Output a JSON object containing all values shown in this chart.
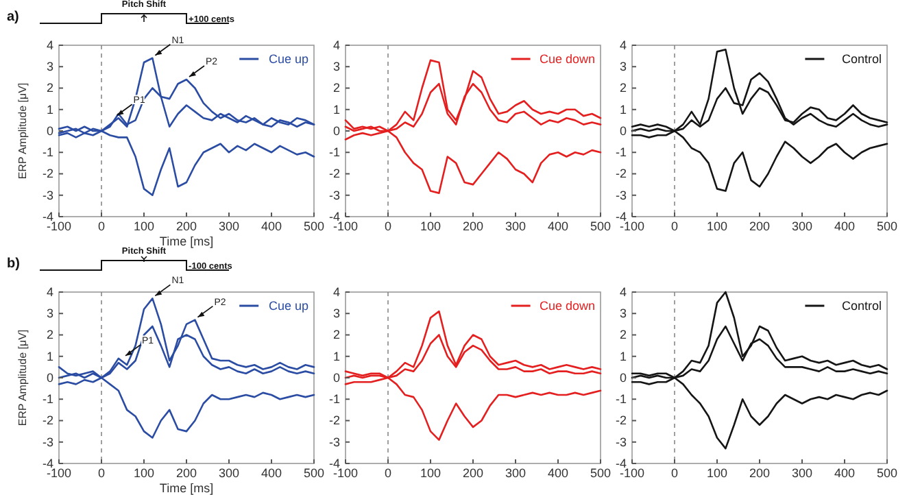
{
  "chart_data": [
    {
      "type": "line",
      "xlabel": "Time [ms]",
      "ylabel": "ERP Amplitude [μV]",
      "x": [
        -100,
        -80,
        -60,
        -40,
        -20,
        0,
        20,
        40,
        60,
        80,
        100,
        120,
        140,
        160,
        180,
        200,
        220,
        240,
        260,
        280,
        300,
        320,
        340,
        360,
        380,
        400,
        420,
        440,
        460,
        480,
        500
      ],
      "xlim": [
        -100,
        500
      ],
      "ylim": [
        -4,
        4
      ],
      "xticks": [
        -100,
        0,
        100,
        200,
        300,
        400,
        500
      ],
      "yticks": [
        -4,
        -3,
        -2,
        -1,
        0,
        1,
        2,
        3,
        4
      ],
      "legend": "top right",
      "ref_lines": [
        {
          "axis": "x",
          "value": 0,
          "line_style": "dashed"
        }
      ],
      "annotations": [
        "a)",
        "Pitch Shift",
        "+100 cents",
        {
          "text": "P1",
          "x": 30,
          "y": 0.6
        },
        {
          "text": "N1",
          "x": 120,
          "y": 3.4
        },
        {
          "text": "P2",
          "x": 200,
          "y": 2.4
        }
      ],
      "series": [
        {
          "name": "Cue up",
          "color": "#2b4ca3",
          "values": [
            0.1,
            0.2,
            0,
            0.2,
            0,
            0,
            0.3,
            0.6,
            0.2,
            1.5,
            3.2,
            3.4,
            1.6,
            0.2,
            0.8,
            1.2,
            0.9,
            0.6,
            0.5,
            0.8,
            0.6,
            0.4,
            0.7,
            0.5,
            0.3,
            0.6,
            0.4,
            0.3,
            0.6,
            0.5,
            0.3
          ]
        },
        {
          "color": "#2b4ca3",
          "values": [
            -0.1,
            0,
            0.1,
            -0.1,
            0.1,
            0,
            0.2,
            0.8,
            0.3,
            0.5,
            1.5,
            2.0,
            1.6,
            1.5,
            2.2,
            2.4,
            2.0,
            1.3,
            0.9,
            0.6,
            0.8,
            0.5,
            0.4,
            0.6,
            0.3,
            0.2,
            0.5,
            0.4,
            0.2,
            0.4,
            0.3
          ]
        },
        {
          "color": "#2b4ca3",
          "values": [
            -0.2,
            -0.1,
            -0.3,
            -0.1,
            -0.2,
            0,
            -0.2,
            -0.3,
            -0.3,
            -1.2,
            -2.7,
            -3.0,
            -1.8,
            -0.8,
            -2.6,
            -2.4,
            -1.6,
            -1.0,
            -0.8,
            -0.6,
            -1.0,
            -0.7,
            -0.9,
            -0.6,
            -0.8,
            -1.0,
            -0.7,
            -0.9,
            -1.1,
            -1.0,
            -1.2
          ]
        }
      ]
    },
    {
      "type": "line",
      "x": [
        -100,
        -80,
        -60,
        -40,
        -20,
        0,
        20,
        40,
        60,
        80,
        100,
        120,
        140,
        160,
        180,
        200,
        220,
        240,
        260,
        280,
        300,
        320,
        340,
        360,
        380,
        400,
        420,
        440,
        460,
        480,
        500
      ],
      "xlim": [
        -100,
        500
      ],
      "ylim": [
        -4,
        4
      ],
      "xticks": [
        -100,
        0,
        100,
        200,
        300,
        400,
        500
      ],
      "yticks": [
        -4,
        -3,
        -2,
        -1,
        0,
        1,
        2,
        3,
        4
      ],
      "legend": "top right",
      "ref_lines": [
        {
          "axis": "x",
          "value": 0,
          "line_style": "dashed"
        }
      ],
      "series": [
        {
          "name": "Cue down",
          "color": "#e41f1f",
          "values": [
            0.5,
            0.1,
            0.2,
            0.1,
            0.2,
            0,
            0.3,
            0.9,
            0.5,
            2.0,
            3.3,
            3.2,
            1.0,
            0.5,
            1.5,
            2.8,
            2.5,
            1.5,
            0.8,
            0.9,
            1.2,
            1.4,
            1.0,
            0.8,
            0.9,
            0.8,
            1.0,
            1.0,
            0.7,
            0.8,
            0.6
          ]
        },
        {
          "color": "#e41f1f",
          "values": [
            0.2,
            0,
            0.1,
            0.2,
            0,
            0,
            0.1,
            0.4,
            0.2,
            0.8,
            1.8,
            2.2,
            0.8,
            0.3,
            1.6,
            2.2,
            1.8,
            1.0,
            0.5,
            0.4,
            0.8,
            0.9,
            0.6,
            0.3,
            0.5,
            0.4,
            0.6,
            0.5,
            0.3,
            0.4,
            0.3
          ]
        },
        {
          "color": "#e41f1f",
          "values": [
            -0.4,
            -0.2,
            -0.1,
            -0.2,
            -0.1,
            0,
            -0.3,
            -1.0,
            -1.5,
            -1.8,
            -2.8,
            -2.9,
            -1.2,
            -1.5,
            -2.4,
            -2.5,
            -2.0,
            -1.5,
            -1.0,
            -1.3,
            -1.8,
            -2.0,
            -2.4,
            -1.5,
            -1.1,
            -1.0,
            -1.2,
            -1.0,
            -1.1,
            -0.9,
            -1.0
          ]
        }
      ]
    },
    {
      "type": "line",
      "x": [
        -100,
        -80,
        -60,
        -40,
        -20,
        0,
        20,
        40,
        60,
        80,
        100,
        120,
        140,
        160,
        180,
        200,
        220,
        240,
        260,
        280,
        300,
        320,
        340,
        360,
        380,
        400,
        420,
        440,
        460,
        480,
        500
      ],
      "xlim": [
        -100,
        500
      ],
      "ylim": [
        -4,
        4
      ],
      "xticks": [
        -100,
        0,
        100,
        200,
        300,
        400,
        500
      ],
      "yticks": [
        -4,
        -3,
        -2,
        -1,
        0,
        1,
        2,
        3,
        4
      ],
      "legend": "top right",
      "ref_lines": [
        {
          "axis": "x",
          "value": 0,
          "line_style": "dashed"
        }
      ],
      "series": [
        {
          "name": "Control",
          "color": "#151515",
          "values": [
            0.2,
            0.3,
            0.2,
            0.3,
            0.2,
            0,
            0.3,
            0.9,
            0.3,
            1.5,
            3.7,
            3.8,
            2.0,
            0.8,
            1.5,
            2.0,
            1.8,
            1.2,
            0.5,
            0.4,
            0.8,
            1.1,
            1.0,
            0.6,
            0.5,
            0.8,
            1.2,
            0.8,
            0.6,
            0.5,
            0.4
          ]
        },
        {
          "color": "#151515",
          "values": [
            0,
            0.1,
            0,
            0.1,
            0,
            0,
            0.1,
            0.5,
            0.2,
            0.5,
            1.5,
            2.0,
            1.3,
            1.2,
            2.4,
            2.7,
            2.3,
            1.5,
            0.6,
            0.3,
            0.6,
            0.8,
            0.5,
            0.3,
            0.2,
            0.5,
            0.8,
            0.5,
            0.3,
            0.2,
            0.3
          ]
        },
        {
          "color": "#151515",
          "values": [
            -0.2,
            -0.2,
            -0.3,
            -0.2,
            -0.2,
            0,
            -0.3,
            -0.8,
            -1.0,
            -1.5,
            -2.7,
            -2.8,
            -1.5,
            -1.0,
            -2.3,
            -2.6,
            -2.0,
            -1.2,
            -0.5,
            -0.8,
            -1.2,
            -1.5,
            -1.2,
            -0.8,
            -0.6,
            -1.0,
            -1.3,
            -1.0,
            -0.8,
            -0.7,
            -0.6
          ]
        }
      ]
    },
    {
      "type": "line",
      "xlabel": "Time [ms]",
      "ylabel": "ERP Amplitude [μV]",
      "x": [
        -100,
        -80,
        -60,
        -40,
        -20,
        0,
        20,
        40,
        60,
        80,
        100,
        120,
        140,
        160,
        180,
        200,
        220,
        240,
        260,
        280,
        300,
        320,
        340,
        360,
        380,
        400,
        420,
        440,
        460,
        480,
        500
      ],
      "xlim": [
        -100,
        500
      ],
      "ylim": [
        -4,
        4
      ],
      "xticks": [
        -100,
        0,
        100,
        200,
        300,
        400,
        500
      ],
      "yticks": [
        -4,
        -3,
        -2,
        -1,
        0,
        1,
        2,
        3,
        4
      ],
      "legend": "top right",
      "ref_lines": [
        {
          "axis": "x",
          "value": 0,
          "line_style": "dashed"
        }
      ],
      "annotations": [
        "b)",
        "Pitch Shift",
        "-100 cents",
        {
          "text": "P1",
          "x": 50,
          "y": 0.9
        },
        {
          "text": "N1",
          "x": 120,
          "y": 3.7
        },
        {
          "text": "P2",
          "x": 220,
          "y": 2.7
        }
      ],
      "series": [
        {
          "name": "Cue up",
          "color": "#2b4ca3",
          "values": [
            0.5,
            0.2,
            0.1,
            0.2,
            0.3,
            0,
            0.3,
            0.9,
            0.6,
            1.5,
            3.2,
            3.7,
            2.5,
            0.8,
            1.5,
            2.5,
            2.7,
            1.8,
            0.9,
            0.8,
            0.8,
            0.6,
            0.5,
            0.6,
            0.4,
            0.5,
            0.7,
            0.5,
            0.4,
            0.6,
            0.5
          ]
        },
        {
          "color": "#2b4ca3",
          "values": [
            0,
            0.1,
            0.2,
            0,
            0.2,
            0,
            0.2,
            0.7,
            0.4,
            0.8,
            2.0,
            2.4,
            1.5,
            0.5,
            1.8,
            2.0,
            1.8,
            1.0,
            0.6,
            0.4,
            0.5,
            0.3,
            0.2,
            0.4,
            0.2,
            0.3,
            0.5,
            0.3,
            0.2,
            0.3,
            0.2
          ]
        },
        {
          "color": "#2b4ca3",
          "values": [
            -0.3,
            -0.2,
            -0.3,
            -0.1,
            -0.2,
            0,
            -0.3,
            -0.6,
            -1.5,
            -1.8,
            -2.5,
            -2.8,
            -2.0,
            -1.5,
            -2.4,
            -2.5,
            -2.0,
            -1.2,
            -0.8,
            -1.0,
            -1.0,
            -0.9,
            -0.8,
            -0.9,
            -0.7,
            -0.8,
            -1.0,
            -0.9,
            -0.8,
            -0.9,
            -0.8
          ]
        }
      ]
    },
    {
      "type": "line",
      "x": [
        -100,
        -80,
        -60,
        -40,
        -20,
        0,
        20,
        40,
        60,
        80,
        100,
        120,
        140,
        160,
        180,
        200,
        220,
        240,
        260,
        280,
        300,
        320,
        340,
        360,
        380,
        400,
        420,
        440,
        460,
        480,
        500
      ],
      "xlim": [
        -100,
        500
      ],
      "ylim": [
        -4,
        4
      ],
      "xticks": [
        -100,
        0,
        100,
        200,
        300,
        400,
        500
      ],
      "yticks": [
        -4,
        -3,
        -2,
        -1,
        0,
        1,
        2,
        3,
        4
      ],
      "legend": "top right",
      "ref_lines": [
        {
          "axis": "x",
          "value": 0,
          "line_style": "dashed"
        }
      ],
      "series": [
        {
          "name": "Cue down",
          "color": "#e41f1f",
          "values": [
            0.3,
            0.2,
            0.1,
            0.2,
            0.2,
            0,
            0.3,
            0.7,
            0.5,
            1.5,
            2.8,
            3.1,
            1.5,
            0.6,
            1.5,
            2.0,
            1.8,
            1.0,
            0.6,
            0.7,
            0.8,
            0.6,
            0.5,
            0.6,
            0.4,
            0.5,
            0.6,
            0.5,
            0.4,
            0.5,
            0.4
          ]
        },
        {
          "color": "#e41f1f",
          "values": [
            0,
            0.1,
            0,
            0.1,
            0.1,
            0,
            0.1,
            0.4,
            0.3,
            0.8,
            1.6,
            2.0,
            1.0,
            0.5,
            1.2,
            1.5,
            1.3,
            0.8,
            0.4,
            0.4,
            0.5,
            0.3,
            0.3,
            0.4,
            0.2,
            0.3,
            0.3,
            0.2,
            0.2,
            0.3,
            0.2
          ]
        },
        {
          "color": "#e41f1f",
          "values": [
            -0.3,
            -0.2,
            -0.2,
            -0.2,
            -0.1,
            0,
            -0.3,
            -0.8,
            -0.9,
            -1.5,
            -2.5,
            -2.9,
            -2.0,
            -1.2,
            -1.8,
            -2.3,
            -2.0,
            -1.3,
            -0.8,
            -0.8,
            -0.9,
            -0.8,
            -0.7,
            -0.8,
            -0.7,
            -0.8,
            -0.8,
            -0.7,
            -0.8,
            -0.7,
            -0.6
          ]
        }
      ]
    },
    {
      "type": "line",
      "x": [
        -100,
        -80,
        -60,
        -40,
        -20,
        0,
        20,
        40,
        60,
        80,
        100,
        120,
        140,
        160,
        180,
        200,
        220,
        240,
        260,
        280,
        300,
        320,
        340,
        360,
        380,
        400,
        420,
        440,
        460,
        480,
        500
      ],
      "xlim": [
        -100,
        500
      ],
      "ylim": [
        -4,
        4
      ],
      "xticks": [
        -100,
        0,
        100,
        200,
        300,
        400,
        500
      ],
      "yticks": [
        -4,
        -3,
        -2,
        -1,
        0,
        1,
        2,
        3,
        4
      ],
      "legend": "top right",
      "ref_lines": [
        {
          "axis": "x",
          "value": 0,
          "line_style": "dashed"
        }
      ],
      "series": [
        {
          "name": "Control",
          "color": "#151515",
          "values": [
            0.2,
            0.2,
            0.1,
            0.2,
            0.2,
            0,
            0.3,
            0.8,
            0.7,
            1.5,
            3.5,
            4.0,
            2.8,
            1.0,
            1.5,
            2.4,
            2.2,
            1.4,
            0.8,
            0.9,
            1.0,
            0.8,
            0.7,
            0.8,
            0.6,
            0.7,
            0.8,
            0.6,
            0.5,
            0.6,
            0.4
          ]
        },
        {
          "color": "#151515",
          "values": [
            0,
            0.1,
            0,
            0.1,
            0,
            0,
            0.1,
            0.4,
            0.3,
            0.8,
            1.8,
            2.4,
            1.6,
            0.8,
            1.6,
            1.8,
            1.5,
            0.9,
            0.5,
            0.5,
            0.5,
            0.4,
            0.3,
            0.5,
            0.3,
            0.3,
            0.4,
            0.3,
            0.2,
            0.3,
            0.2
          ]
        },
        {
          "color": "#151515",
          "values": [
            -0.2,
            -0.2,
            -0.3,
            -0.2,
            -0.2,
            0,
            -0.3,
            -0.8,
            -1.2,
            -1.8,
            -2.8,
            -3.3,
            -2.2,
            -1.0,
            -1.8,
            -2.2,
            -1.8,
            -1.2,
            -0.8,
            -1.0,
            -1.2,
            -1.0,
            -0.9,
            -1.0,
            -0.8,
            -0.9,
            -1.0,
            -0.8,
            -0.7,
            -0.8,
            -0.6
          ]
        }
      ]
    }
  ]
}
